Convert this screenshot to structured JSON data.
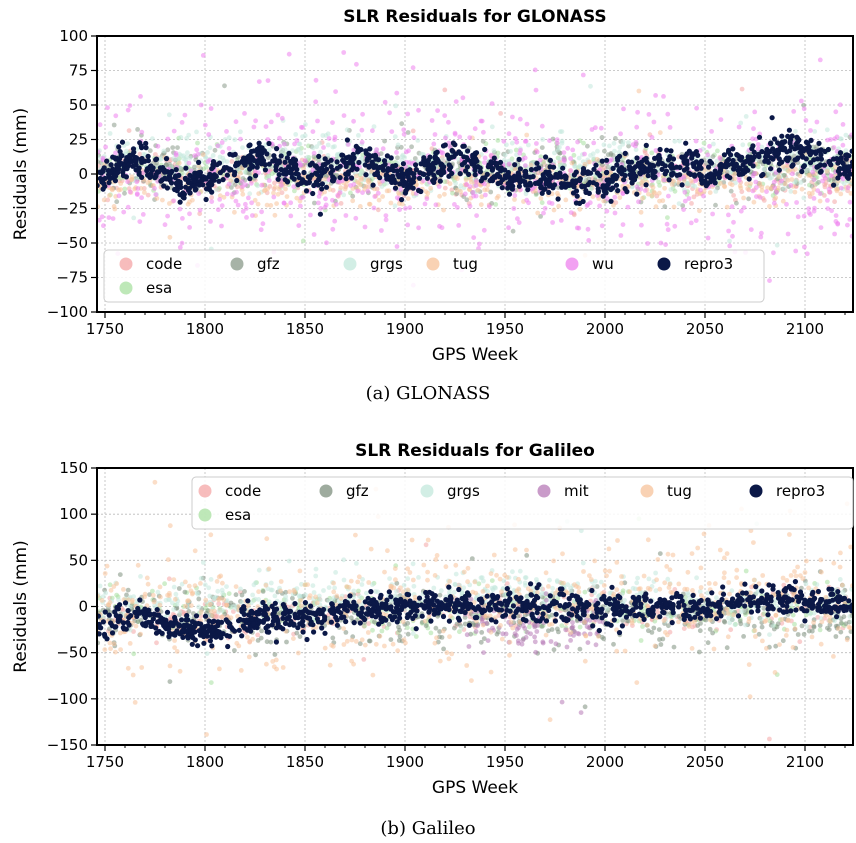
{
  "chart_data": [
    {
      "type": "scatter",
      "title": "SLR Residuals for GLONASS",
      "xlabel": "GPS Week",
      "ylabel": "Residuals (mm)",
      "xlim": [
        1746,
        2124
      ],
      "ylim": [
        -100,
        100
      ],
      "xticks": [
        1750,
        1800,
        1850,
        1900,
        1950,
        2000,
        2050,
        2100
      ],
      "yticks": [
        -100,
        -75,
        -50,
        -25,
        0,
        25,
        50,
        75,
        100
      ],
      "grid": true,
      "legend_position": "lower-left",
      "caption": "(a) GLONASS",
      "series": [
        {
          "name": "code",
          "color": "#f4a6a6",
          "center": [
            [
              1746,
              -2
            ],
            [
              2124,
              -2
            ]
          ],
          "spread": 8,
          "count": 350
        },
        {
          "name": "esa",
          "color": "#a8e0a0",
          "center": [
            [
              1746,
              2
            ],
            [
              2124,
              2
            ]
          ],
          "spread": 8,
          "count": 350
        },
        {
          "name": "gfz",
          "color": "#8a9a8a",
          "center": [
            [
              1746,
              3
            ],
            [
              2124,
              3
            ]
          ],
          "spread": 10,
          "count": 500
        },
        {
          "name": "grgs",
          "color": "#c3e8dc",
          "center": [
            [
              1746,
              5
            ],
            [
              1800,
              10
            ],
            [
              1850,
              12
            ],
            [
              1900,
              8
            ],
            [
              2000,
              5
            ],
            [
              2124,
              6
            ]
          ],
          "spread": 10,
          "count": 600
        },
        {
          "name": "tug",
          "color": "#f7c39b",
          "center": [
            [
              1746,
              -8
            ],
            [
              2124,
              -6
            ]
          ],
          "spread": 8,
          "count": 500
        },
        {
          "name": "wu",
          "color": "#ee82ee",
          "center": [
            [
              1746,
              0
            ],
            [
              2124,
              0
            ]
          ],
          "spread": 25,
          "count": 700
        },
        {
          "name": "repro3",
          "color": "#0b1847",
          "center": [
            [
              1746,
              -5
            ],
            [
              1765,
              12
            ],
            [
              1790,
              -10
            ],
            [
              1830,
              15
            ],
            [
              1850,
              -5
            ],
            [
              1878,
              12
            ],
            [
              1900,
              -5
            ],
            [
              1928,
              15
            ],
            [
              1950,
              -3
            ],
            [
              2000,
              -5
            ],
            [
              2030,
              10
            ],
            [
              2050,
              0
            ],
            [
              2090,
              18
            ],
            [
              2124,
              5
            ]
          ],
          "spread": 6,
          "count": 1200
        }
      ],
      "legend_order": [
        "code",
        "gfz",
        "grgs",
        "tug",
        "wu",
        "repro3",
        "esa"
      ]
    },
    {
      "type": "scatter",
      "title": "SLR Residuals for Galileo",
      "xlabel": "GPS Week",
      "ylabel": "Residuals (mm)",
      "xlim": [
        1746,
        2124
      ],
      "ylim": [
        -150,
        150
      ],
      "xticks": [
        1750,
        1800,
        1850,
        1900,
        1950,
        2000,
        2050,
        2100
      ],
      "yticks": [
        -150,
        -100,
        -50,
        0,
        50,
        100,
        150
      ],
      "grid": true,
      "legend_position": "top-right",
      "caption": "(b) Galileo",
      "series": [
        {
          "name": "code",
          "color": "#f4a6a6",
          "center": [
            [
              1746,
              -15
            ],
            [
              1850,
              -5
            ],
            [
              2124,
              -3
            ]
          ],
          "spread": 12,
          "count": 300
        },
        {
          "name": "esa",
          "color": "#a8e0a0",
          "center": [
            [
              1746,
              -5
            ],
            [
              2124,
              -5
            ]
          ],
          "spread": 12,
          "count": 300
        },
        {
          "name": "gfz",
          "color": "#7d8f7d",
          "center": [
            [
              1746,
              -10
            ],
            [
              1900,
              -10
            ],
            [
              2124,
              -12
            ]
          ],
          "spread": 15,
          "count": 500
        },
        {
          "name": "grgs",
          "color": "#c3e8dc",
          "center": [
            [
              1746,
              5
            ],
            [
              1930,
              10
            ],
            [
              1960,
              20
            ],
            [
              2000,
              10
            ],
            [
              2124,
              5
            ]
          ],
          "spread": 12,
          "count": 500
        },
        {
          "name": "mit",
          "color": "#b77ab7",
          "center": [
            [
              1930,
              -15
            ],
            [
              1960,
              -25
            ],
            [
              2000,
              -15
            ]
          ],
          "spread": 12,
          "count": 120
        },
        {
          "name": "tug",
          "color": "#f7c39b",
          "center": [
            [
              1746,
              -10
            ],
            [
              1830,
              -5
            ],
            [
              1900,
              5
            ],
            [
              2124,
              5
            ]
          ],
          "spread": 30,
          "count": 650
        },
        {
          "name": "repro3",
          "color": "#0b1847",
          "center": [
            [
              1746,
              -20
            ],
            [
              1760,
              -10
            ],
            [
              1780,
              -15
            ],
            [
              1800,
              -30
            ],
            [
              1830,
              -10
            ],
            [
              1850,
              -15
            ],
            [
              1870,
              -5
            ],
            [
              1900,
              0
            ],
            [
              1950,
              0
            ],
            [
              2000,
              -2
            ],
            [
              2050,
              0
            ],
            [
              2090,
              8
            ],
            [
              2124,
              0
            ]
          ],
          "spread": 8,
          "count": 1100
        }
      ],
      "legend_order": [
        "code",
        "gfz",
        "grgs",
        "mit",
        "tug",
        "repro3",
        "esa"
      ]
    }
  ]
}
